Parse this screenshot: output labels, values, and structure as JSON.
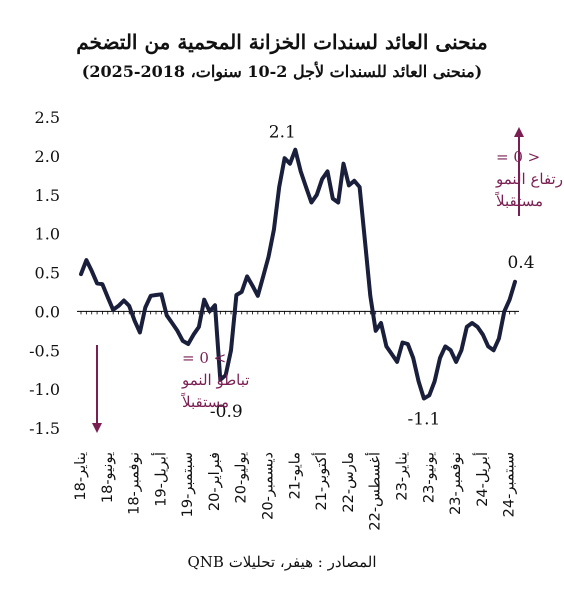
{
  "title": "منحنى العائد لسندات الخزانة المحمية من التضخم",
  "subtitle": "(منحنى العائد للسندات لأجل 2-10 سنوات، 2018-2025)",
  "source": "المصادر : هيفر، تحليلات QNB",
  "colors": {
    "line": "#1a1f3c",
    "annotation": "#7a1f52",
    "text": "#111111"
  },
  "chart_data": {
    "type": "line",
    "title": "منحنى العائد لسندات الخزانة المحمية من التضخم",
    "subtitle": "(منحنى العائد للسندات لأجل 2-10 سنوات، 2018-2025)",
    "ylim": [
      -1.5,
      2.5
    ],
    "yticks": [
      "2.5",
      "2.0",
      "1.5",
      "1.0",
      "0.5",
      "0.0",
      "-0.5",
      "-1.0",
      "-1.5"
    ],
    "ytick_values": [
      2.5,
      2.0,
      1.5,
      1.0,
      0.5,
      0.0,
      -0.5,
      -1.0,
      -1.5
    ],
    "xlabels": [
      {
        "text": "يناير-18",
        "index": 0
      },
      {
        "text": "يونيو-18",
        "index": 5
      },
      {
        "text": "نوفمبر-18",
        "index": 10
      },
      {
        "text": "أبريل-19",
        "index": 15
      },
      {
        "text": "سبتمبر-19",
        "index": 20
      },
      {
        "text": "فبراير-20",
        "index": 25
      },
      {
        "text": "يوليو-20",
        "index": 30
      },
      {
        "text": "ديسمبر-20",
        "index": 35
      },
      {
        "text": "مايو-21",
        "index": 40
      },
      {
        "text": "أكتوبر-21",
        "index": 45
      },
      {
        "text": "مارس-22",
        "index": 50
      },
      {
        "text": "أغسطس-22",
        "index": 55
      },
      {
        "text": "يناير-23",
        "index": 60
      },
      {
        "text": "يونيو-23",
        "index": 65
      },
      {
        "text": "نوفمبر-23",
        "index": 70
      },
      {
        "text": "أبريل-24",
        "index": 75
      },
      {
        "text": "سبتمبر-24",
        "index": 80
      }
    ],
    "series": [
      {
        "values": [
          0.48,
          0.66,
          0.52,
          0.36,
          0.35,
          0.18,
          0.02,
          0.07,
          0.14,
          0.07,
          -0.12,
          -0.27,
          0.05,
          0.2,
          0.21,
          0.22,
          -0.05,
          -0.15,
          -0.25,
          -0.38,
          -0.42,
          -0.3,
          -0.2,
          0.15,
          0.0,
          0.08,
          -0.88,
          -0.82,
          -0.5,
          0.21,
          0.25,
          0.45,
          0.33,
          0.2,
          0.45,
          0.7,
          1.05,
          1.6,
          1.97,
          1.9,
          2.08,
          1.8,
          1.6,
          1.4,
          1.5,
          1.7,
          1.8,
          1.45,
          1.4,
          1.9,
          1.62,
          1.68,
          1.6,
          0.9,
          0.2,
          -0.25,
          -0.15,
          -0.45,
          -0.55,
          -0.65,
          -0.4,
          -0.42,
          -0.6,
          -0.9,
          -1.12,
          -1.08,
          -0.9,
          -0.6,
          -0.45,
          -0.5,
          -0.65,
          -0.5,
          -0.2,
          -0.15,
          -0.2,
          -0.3,
          -0.45,
          -0.5,
          -0.35,
          0.0,
          0.15,
          0.38
        ]
      }
    ],
    "annotations": {
      "peak": {
        "text": "2.1",
        "index": 40,
        "value": 2.08
      },
      "trough_2020": {
        "text": "-0.9",
        "index": 26,
        "value": -0.88
      },
      "trough_2023": {
        "text": "-1.1",
        "index": 64,
        "value": -1.12
      },
      "last": {
        "text": "0.4",
        "index": 81,
        "value": 0.38
      },
      "up_label": "< 0 =\nارتفاع النمو\nمستقبلاً",
      "down_label": "> 0 =\nتباطؤ النمو\nمستقبلاً"
    },
    "grid": false,
    "legend": "none"
  }
}
